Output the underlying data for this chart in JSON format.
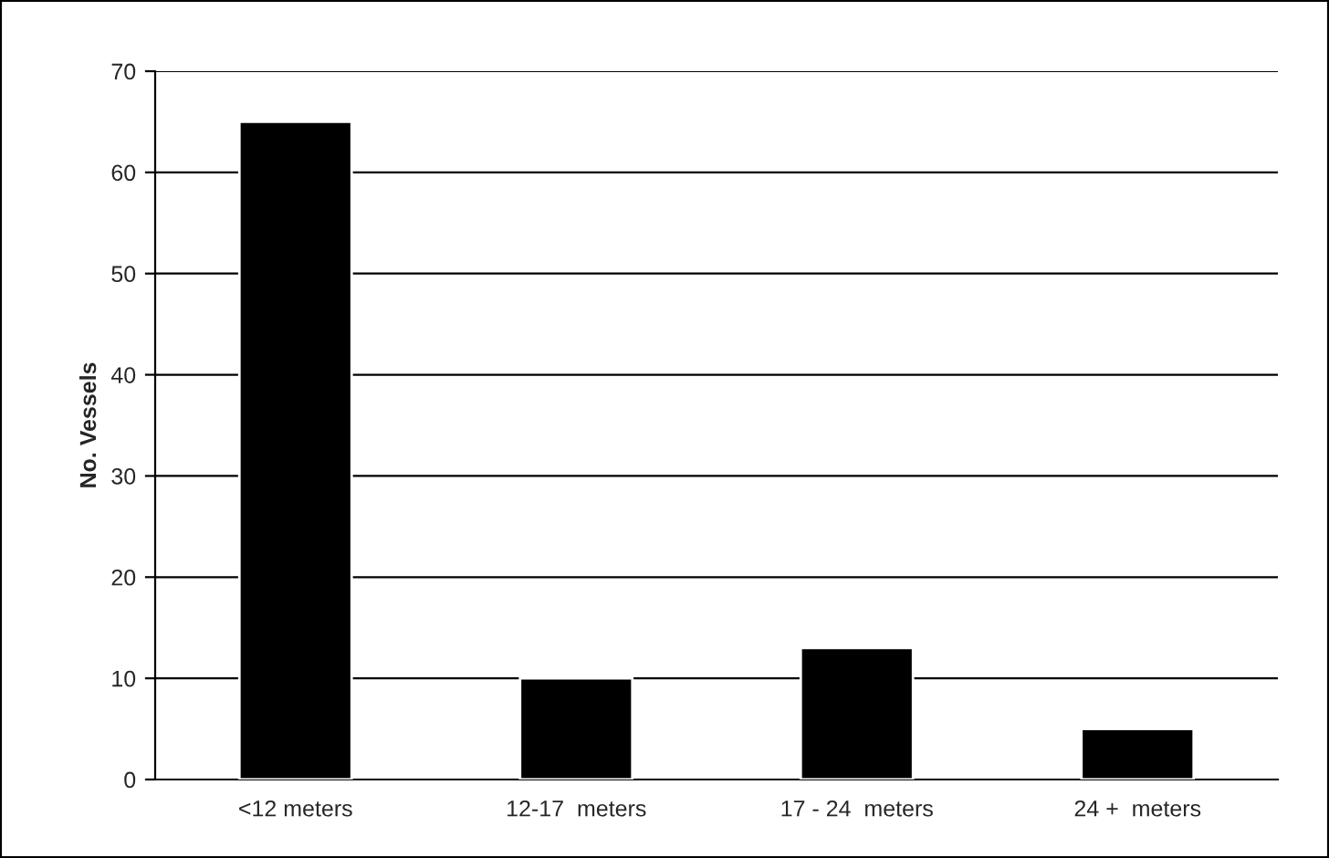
{
  "chart_data": {
    "type": "bar",
    "ylabel": "No. Vessels",
    "categories": [
      "<12 meters",
      "12-17  meters",
      "17 - 24  meters",
      "24 +  meters"
    ],
    "values": [
      65,
      10,
      13,
      5
    ],
    "color": "#000000",
    "ylim": [
      0,
      70
    ],
    "yticks": [
      0,
      10,
      20,
      30,
      40,
      50,
      60,
      70
    ],
    "grid": "y",
    "legend": false
  }
}
